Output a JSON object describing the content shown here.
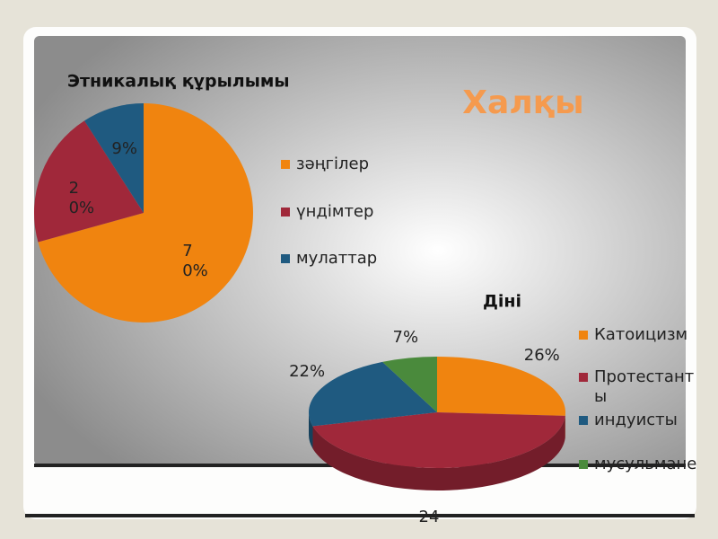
{
  "slide": {
    "title": "Халқы",
    "page": "24"
  },
  "chart_data": [
    {
      "type": "pie",
      "title": "Этникалық құрылымы",
      "categories": [
        "зәңгілер",
        "үндімтер",
        "мулаттар"
      ],
      "values": [
        70,
        20,
        9
      ],
      "value_labels": [
        "70%",
        "20%",
        "9%"
      ],
      "colors": [
        "#f0840f",
        "#a0283a",
        "#1f5a80"
      ]
    },
    {
      "type": "pie3d",
      "title": "Діні",
      "categories": [
        "Катоицизм",
        "Протестанты",
        "индуисты",
        "мусульмане"
      ],
      "values": [
        26,
        45,
        22,
        7
      ],
      "value_labels": [
        "26%",
        null,
        "22%",
        "7%"
      ],
      "colors": [
        "#f0840f",
        "#a0283a",
        "#1f5a80",
        "#4a8a3c"
      ]
    }
  ]
}
